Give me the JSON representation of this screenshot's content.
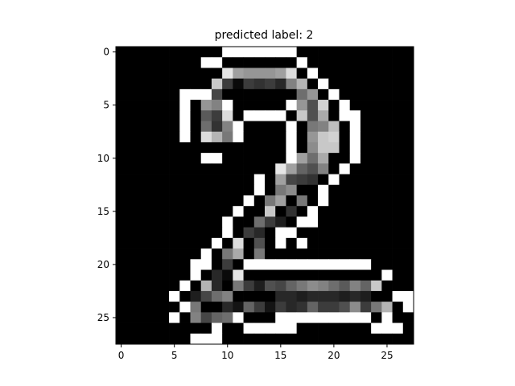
{
  "chart_data": {
    "type": "heatmap",
    "title": "predicted label: 2",
    "colormap": "gray",
    "value_range": [
      0,
      255
    ],
    "xlim": [
      -0.5,
      27.5
    ],
    "ylim": [
      27.5,
      -0.5
    ],
    "xticks": [
      0,
      5,
      10,
      15,
      20,
      25
    ],
    "yticks": [
      0,
      5,
      10,
      15,
      20,
      25
    ],
    "grid": false,
    "rows": [
      [
        0,
        0,
        0,
        0,
        0,
        0,
        0,
        0,
        0,
        0,
        255,
        255,
        255,
        255,
        255,
        255,
        255,
        0,
        0,
        0,
        0,
        0,
        0,
        0,
        0,
        0,
        0,
        0
      ],
      [
        0,
        0,
        0,
        0,
        0,
        0,
        0,
        0,
        255,
        255,
        0,
        0,
        0,
        0,
        0,
        0,
        0,
        255,
        0,
        0,
        0,
        0,
        0,
        0,
        0,
        0,
        0,
        0
      ],
      [
        0,
        0,
        0,
        0,
        0,
        0,
        0,
        0,
        0,
        0,
        230,
        160,
        150,
        150,
        150,
        160,
        220,
        0,
        255,
        0,
        0,
        0,
        0,
        0,
        0,
        0,
        0,
        0
      ],
      [
        0,
        0,
        0,
        0,
        0,
        0,
        0,
        0,
        0,
        200,
        60,
        10,
        60,
        50,
        60,
        40,
        130,
        180,
        0,
        255,
        0,
        0,
        0,
        0,
        0,
        0,
        0,
        0
      ],
      [
        0,
        0,
        0,
        0,
        0,
        0,
        255,
        255,
        255,
        70,
        0,
        0,
        0,
        0,
        0,
        0,
        0,
        110,
        150,
        0,
        255,
        0,
        0,
        0,
        0,
        0,
        0,
        0
      ],
      [
        0,
        0,
        0,
        0,
        0,
        0,
        255,
        0,
        150,
        130,
        255,
        0,
        0,
        0,
        0,
        0,
        255,
        150,
        80,
        210,
        0,
        255,
        0,
        0,
        0,
        0,
        0,
        0
      ],
      [
        0,
        0,
        0,
        0,
        0,
        0,
        255,
        0,
        90,
        60,
        220,
        0,
        255,
        255,
        255,
        255,
        0,
        200,
        80,
        170,
        0,
        255,
        255,
        0,
        0,
        0,
        0,
        0
      ],
      [
        0,
        0,
        0,
        0,
        0,
        0,
        255,
        0,
        110,
        50,
        130,
        255,
        0,
        0,
        0,
        0,
        255,
        0,
        120,
        130,
        190,
        0,
        255,
        0,
        0,
        0,
        0,
        0
      ],
      [
        0,
        0,
        0,
        0,
        0,
        0,
        255,
        0,
        220,
        180,
        120,
        255,
        0,
        0,
        0,
        0,
        255,
        0,
        150,
        200,
        210,
        0,
        255,
        0,
        0,
        0,
        0,
        0
      ],
      [
        0,
        0,
        0,
        0,
        0,
        0,
        0,
        0,
        0,
        0,
        0,
        0,
        0,
        0,
        0,
        0,
        255,
        0,
        140,
        200,
        200,
        0,
        255,
        0,
        0,
        0,
        0,
        0
      ],
      [
        0,
        0,
        0,
        0,
        0,
        0,
        0,
        0,
        255,
        255,
        0,
        0,
        0,
        0,
        0,
        0,
        255,
        160,
        110,
        170,
        0,
        0,
        255,
        0,
        0,
        0,
        0,
        0
      ],
      [
        0,
        0,
        0,
        0,
        0,
        0,
        0,
        0,
        0,
        0,
        0,
        0,
        0,
        0,
        0,
        230,
        160,
        100,
        80,
        130,
        0,
        255,
        0,
        0,
        0,
        0,
        0,
        0
      ],
      [
        0,
        0,
        0,
        0,
        0,
        0,
        0,
        0,
        0,
        0,
        0,
        0,
        0,
        255,
        0,
        160,
        70,
        60,
        50,
        0,
        255,
        0,
        0,
        0,
        0,
        0,
        0,
        0
      ],
      [
        0,
        0,
        0,
        0,
        0,
        0,
        0,
        0,
        0,
        0,
        0,
        0,
        0,
        255,
        0,
        120,
        140,
        0,
        0,
        255,
        0,
        0,
        0,
        0,
        0,
        0,
        0,
        0
      ],
      [
        0,
        0,
        0,
        0,
        0,
        0,
        0,
        0,
        0,
        0,
        0,
        0,
        255,
        0,
        120,
        160,
        0,
        120,
        0,
        255,
        0,
        0,
        0,
        0,
        0,
        0,
        0,
        0
      ],
      [
        0,
        0,
        0,
        0,
        0,
        0,
        0,
        0,
        0,
        0,
        0,
        255,
        0,
        0,
        200,
        0,
        50,
        0,
        255,
        0,
        0,
        0,
        0,
        0,
        0,
        0,
        0,
        0
      ],
      [
        0,
        0,
        0,
        0,
        0,
        0,
        0,
        0,
        0,
        0,
        255,
        0,
        0,
        110,
        60,
        30,
        0,
        255,
        255,
        0,
        0,
        0,
        0,
        0,
        0,
        0,
        0,
        0
      ],
      [
        0,
        0,
        0,
        0,
        0,
        0,
        0,
        0,
        0,
        0,
        255,
        0,
        60,
        40,
        0,
        255,
        255,
        0,
        0,
        0,
        0,
        0,
        0,
        0,
        0,
        0,
        0,
        0
      ],
      [
        0,
        0,
        0,
        0,
        0,
        0,
        0,
        0,
        0,
        255,
        0,
        220,
        0,
        80,
        0,
        255,
        0,
        255,
        0,
        0,
        0,
        0,
        0,
        0,
        0,
        0,
        0,
        0
      ],
      [
        0,
        0,
        0,
        0,
        0,
        0,
        0,
        0,
        255,
        0,
        120,
        170,
        0,
        120,
        0,
        0,
        0,
        0,
        0,
        0,
        0,
        0,
        0,
        0,
        0,
        0,
        0,
        0
      ],
      [
        0,
        0,
        0,
        0,
        0,
        0,
        0,
        255,
        255,
        0,
        60,
        0,
        255,
        255,
        255,
        255,
        255,
        255,
        255,
        255,
        255,
        255,
        255,
        255,
        0,
        0,
        0,
        0
      ],
      [
        0,
        0,
        0,
        0,
        0,
        0,
        0,
        255,
        0,
        40,
        10,
        230,
        0,
        0,
        0,
        0,
        0,
        0,
        0,
        0,
        0,
        0,
        0,
        0,
        0,
        255,
        0,
        0
      ],
      [
        0,
        0,
        0,
        0,
        0,
        0,
        255,
        0,
        180,
        40,
        0,
        120,
        60,
        30,
        80,
        70,
        100,
        120,
        140,
        130,
        110,
        90,
        130,
        100,
        200,
        0,
        0,
        0
      ],
      [
        0,
        0,
        0,
        0,
        0,
        255,
        0,
        30,
        70,
        110,
        130,
        0,
        0,
        0,
        0,
        40,
        40,
        30,
        40,
        40,
        40,
        30,
        40,
        30,
        0,
        0,
        255,
        255
      ],
      [
        0,
        0,
        0,
        0,
        0,
        0,
        255,
        120,
        0,
        0,
        40,
        20,
        100,
        60,
        20,
        60,
        40,
        50,
        100,
        60,
        60,
        80,
        140,
        60,
        120,
        180,
        0,
        255
      ],
      [
        0,
        0,
        0,
        0,
        0,
        255,
        0,
        130,
        70,
        100,
        110,
        255,
        0,
        0,
        0,
        255,
        255,
        255,
        255,
        255,
        255,
        255,
        255,
        255,
        0,
        255,
        0,
        0
      ],
      [
        0,
        0,
        0,
        0,
        0,
        0,
        0,
        0,
        0,
        255,
        0,
        0,
        255,
        255,
        255,
        255,
        255,
        0,
        0,
        0,
        0,
        0,
        0,
        0,
        255,
        255,
        255,
        0
      ],
      [
        0,
        0,
        0,
        0,
        0,
        0,
        0,
        255,
        255,
        255,
        0,
        0,
        0,
        0,
        0,
        0,
        0,
        0,
        0,
        0,
        0,
        0,
        0,
        0,
        0,
        0,
        0,
        0
      ]
    ]
  }
}
